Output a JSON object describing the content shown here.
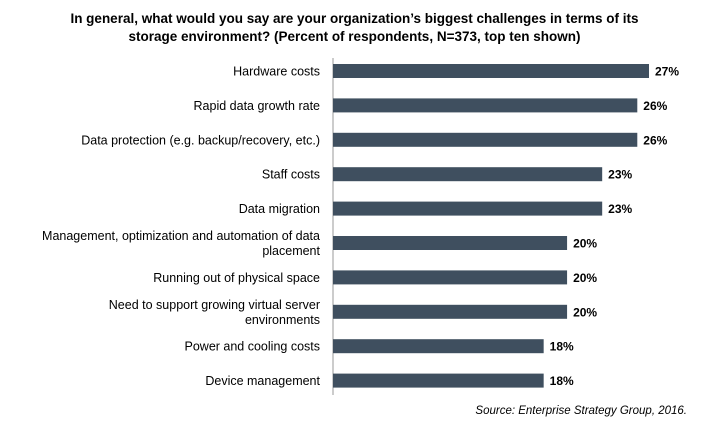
{
  "chart_data": {
    "type": "bar",
    "orientation": "horizontal",
    "title": "In general, what would you say are your organization’s biggest challenges in terms of its storage environment? (Percent of respondents, N=373, top ten shown)",
    "categories": [
      "Hardware costs",
      "Rapid data growth rate",
      "Data protection (e.g. backup/recovery, etc.)",
      "Staff costs",
      "Data migration",
      "Management, optimization and automation of data placement",
      "Running out of physical space",
      "Need to support growing virtual server environments",
      "Power and cooling costs",
      "Device management"
    ],
    "category_lines": [
      [
        "Hardware costs"
      ],
      [
        "Rapid data growth rate"
      ],
      [
        "Data protection (e.g. backup/recovery, etc.)"
      ],
      [
        "Staff costs"
      ],
      [
        "Data migration"
      ],
      [
        "Management, optimization and automation of data",
        "placement"
      ],
      [
        "Running out of physical space"
      ],
      [
        "Need to support growing virtual server",
        "environments"
      ],
      [
        "Power and cooling costs"
      ],
      [
        "Device management"
      ]
    ],
    "values": [
      27,
      26,
      26,
      23,
      23,
      20,
      20,
      20,
      18,
      18
    ],
    "value_labels": [
      "27%",
      "26%",
      "26%",
      "23%",
      "23%",
      "20%",
      "20%",
      "20%",
      "18%",
      "18%"
    ],
    "xlim": [
      0,
      27
    ],
    "bar_color": "#3f4f5f",
    "grid": false,
    "source": "Source: Enterprise Strategy Group, 2016."
  }
}
